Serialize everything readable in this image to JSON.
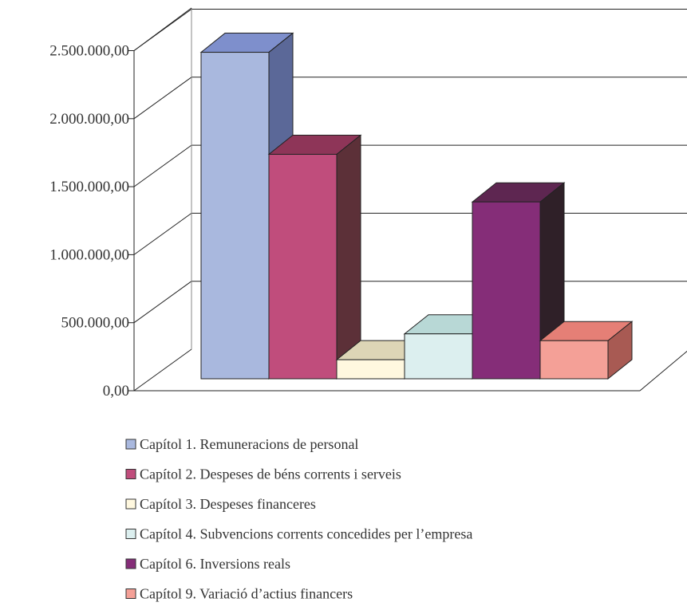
{
  "chart_data": {
    "type": "bar",
    "title": "",
    "xlabel": "",
    "ylabel": "",
    "ylim": [
      0,
      2500000
    ],
    "y_ticks": [
      "0,00",
      "500.000,00",
      "1.000.000,00",
      "1.500.000,00",
      "2.000.000,00",
      "2.500.000,00"
    ],
    "grid": true,
    "legend_position": "bottom",
    "three_d": true,
    "series": [
      {
        "name": "Capítol 1. Remuneracions de personal",
        "value": 2400000,
        "color": "#A9B8DE",
        "top_color": "#7E8FCC",
        "side_color": "#5B6898"
      },
      {
        "name": "Capítol 2. Despeses de béns corrents i serveis",
        "value": 1650000,
        "color": "#C04D7C",
        "top_color": "#8E3558",
        "side_color": "#5C3038"
      },
      {
        "name": "Capítol 3. Despeses financeres",
        "value": 140000,
        "color": "#FFF8DF",
        "top_color": "#DDD5B6",
        "side_color": "#A8A08A"
      },
      {
        "name": "Capítol 4. Subvencions corrents concedides per l’empresa",
        "value": 330000,
        "color": "#DCEFEF",
        "top_color": "#B8D8D6",
        "side_color": "#8FA8A6"
      },
      {
        "name": "Capítol 6. Inversions reals",
        "value": 1300000,
        "color": "#852D78",
        "top_color": "#5E2651",
        "side_color": "#2F2028"
      },
      {
        "name": "Capítol 9. Variació d’actius financers",
        "value": 280000,
        "color": "#F4A097",
        "top_color": "#E57F76",
        "side_color": "#A85A53"
      }
    ]
  }
}
